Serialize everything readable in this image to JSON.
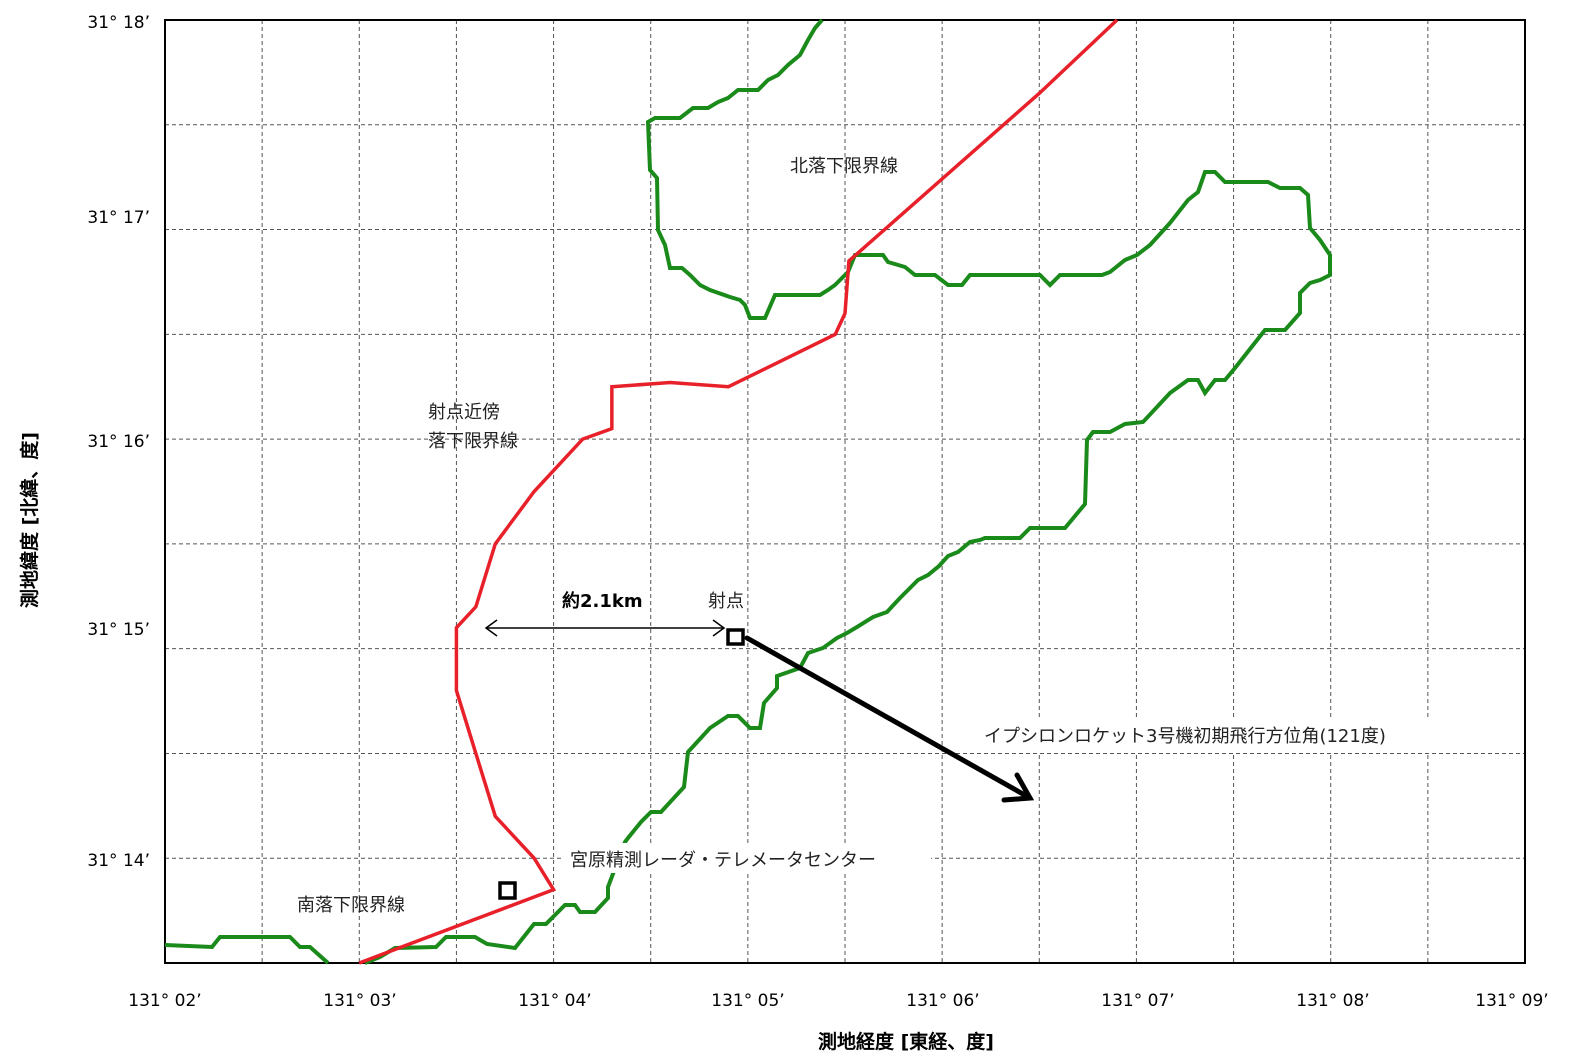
{
  "axes": {
    "xlabel": "測地経度 [東経、度]",
    "ylabel": "測地緯度 [北緯、度]",
    "x_ticks": [
      "131° 02’",
      "131° 03’",
      "131° 04’",
      "131° 05’",
      "131° 06’",
      "131° 07’",
      "131° 08’",
      "131° 09’"
    ],
    "y_ticks": [
      "31° 18’",
      "31° 17’",
      "31° 16’",
      "31° 15’",
      "31° 14’"
    ],
    "x_range_minutes": [
      2,
      9
    ],
    "y_range_minutes": [
      13.5,
      18
    ],
    "grid": "dashed, every 0.5 minute"
  },
  "labels": {
    "north_limit": "北落下限界線",
    "near_limit_line1": "射点近傍",
    "near_limit_line2": "落下限界線",
    "south_limit": "南落下限界線",
    "distance": "約2.1km",
    "launch_point": "射点",
    "flight_direction": "イプシロンロケット3号機初期飛行方位角(121度)",
    "radar_center": "宮原精測レーダ・テレメータセンター"
  },
  "colors": {
    "limit_line": "#e8202a",
    "coastline": "#1a8a1a",
    "arrow": "#000000"
  },
  "chart_data": {
    "type": "map",
    "limit_line": {
      "x_min": [
        3.0,
        4.0,
        3.9,
        3.7,
        3.6,
        3.5,
        3.5,
        3.6,
        3.7,
        3.9,
        4.15,
        4.3,
        4.3,
        4.6,
        4.9,
        5.45,
        5.5,
        5.52,
        6.5,
        6.9
      ],
      "y_min": [
        13.5,
        13.85,
        14.0,
        14.2,
        14.5,
        14.8,
        15.1,
        15.2,
        15.5,
        15.75,
        16.0,
        16.05,
        16.25,
        16.27,
        16.25,
        16.5,
        16.6,
        16.85,
        17.65,
        18.0
      ]
    },
    "flight_direction_deg": 121,
    "distance_km": 2.1
  }
}
